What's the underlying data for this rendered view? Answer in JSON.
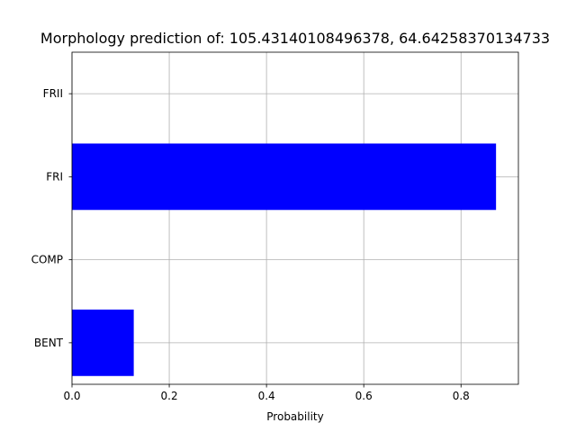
{
  "chart_data": {
    "type": "bar",
    "orientation": "horizontal",
    "title": "Morphology prediction of: 105.43140108496378, 64.64258370134733",
    "xlabel": "Probability",
    "ylabel": "",
    "categories": [
      "BENT",
      "COMP",
      "FRI",
      "FRII"
    ],
    "values": [
      0.127,
      0.0,
      0.872,
      0.0
    ],
    "xlim": [
      0,
      0.918
    ],
    "xticks": [
      0.0,
      0.2,
      0.4,
      0.6,
      0.8
    ],
    "xtick_labels": [
      "0.0",
      "0.2",
      "0.4",
      "0.6",
      "0.8"
    ],
    "bar_color": "#0000ff",
    "grid": true
  }
}
